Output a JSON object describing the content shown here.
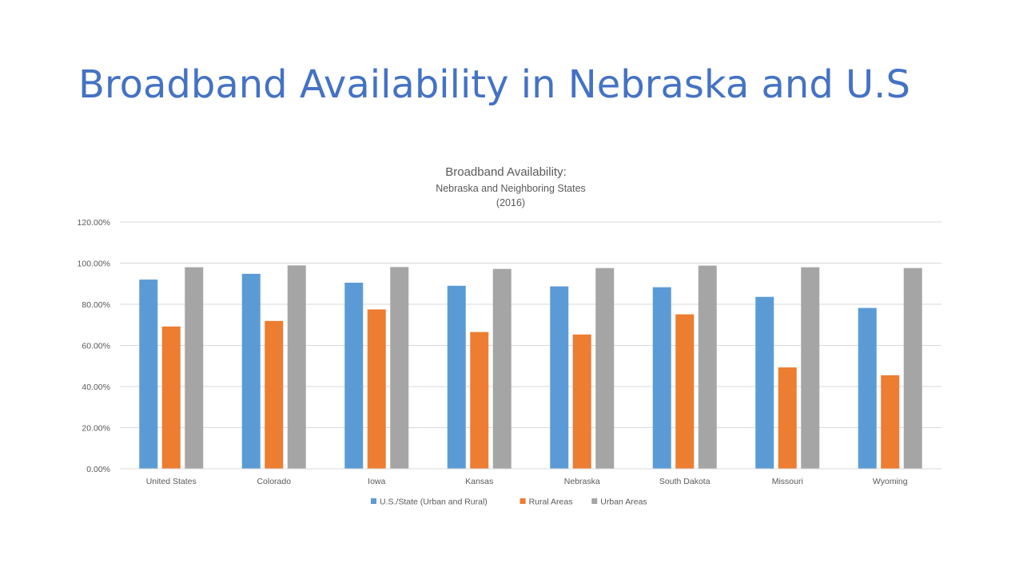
{
  "slide": {
    "title": "Broadband Availability in Nebraska and U.S"
  },
  "chart_data": {
    "type": "bar",
    "title": "Broadband Availability:",
    "subtitle_lines": [
      "Nebraska and Neighboring States",
      "(2016)"
    ],
    "xlabel": "",
    "ylabel": "",
    "categories": [
      "United States",
      "Colorado",
      "Iowa",
      "Kansas",
      "Nebraska",
      "South Dakota",
      "Missouri",
      "Wyoming"
    ],
    "series": [
      {
        "name": "U.S./State (Urban and Rural)",
        "color": "#5b9bd5",
        "values": [
          92.0,
          94.8,
          90.5,
          89.0,
          88.7,
          88.3,
          83.6,
          78.2
        ]
      },
      {
        "name": "Rural Areas",
        "color": "#ed7d31",
        "values": [
          69.2,
          71.9,
          77.5,
          66.5,
          65.3,
          75.1,
          49.3,
          45.5
        ]
      },
      {
        "name": "Urban Areas",
        "color": "#a5a5a5",
        "values": [
          98.0,
          98.9,
          98.1,
          97.2,
          97.6,
          98.8,
          98.0,
          97.6
        ]
      }
    ],
    "ylim": [
      0,
      120
    ],
    "yticks": [
      "0.00%",
      "20.00%",
      "40.00%",
      "60.00%",
      "80.00%",
      "100.00%",
      "120.00%"
    ],
    "grid": true,
    "legend_position": "bottom"
  }
}
